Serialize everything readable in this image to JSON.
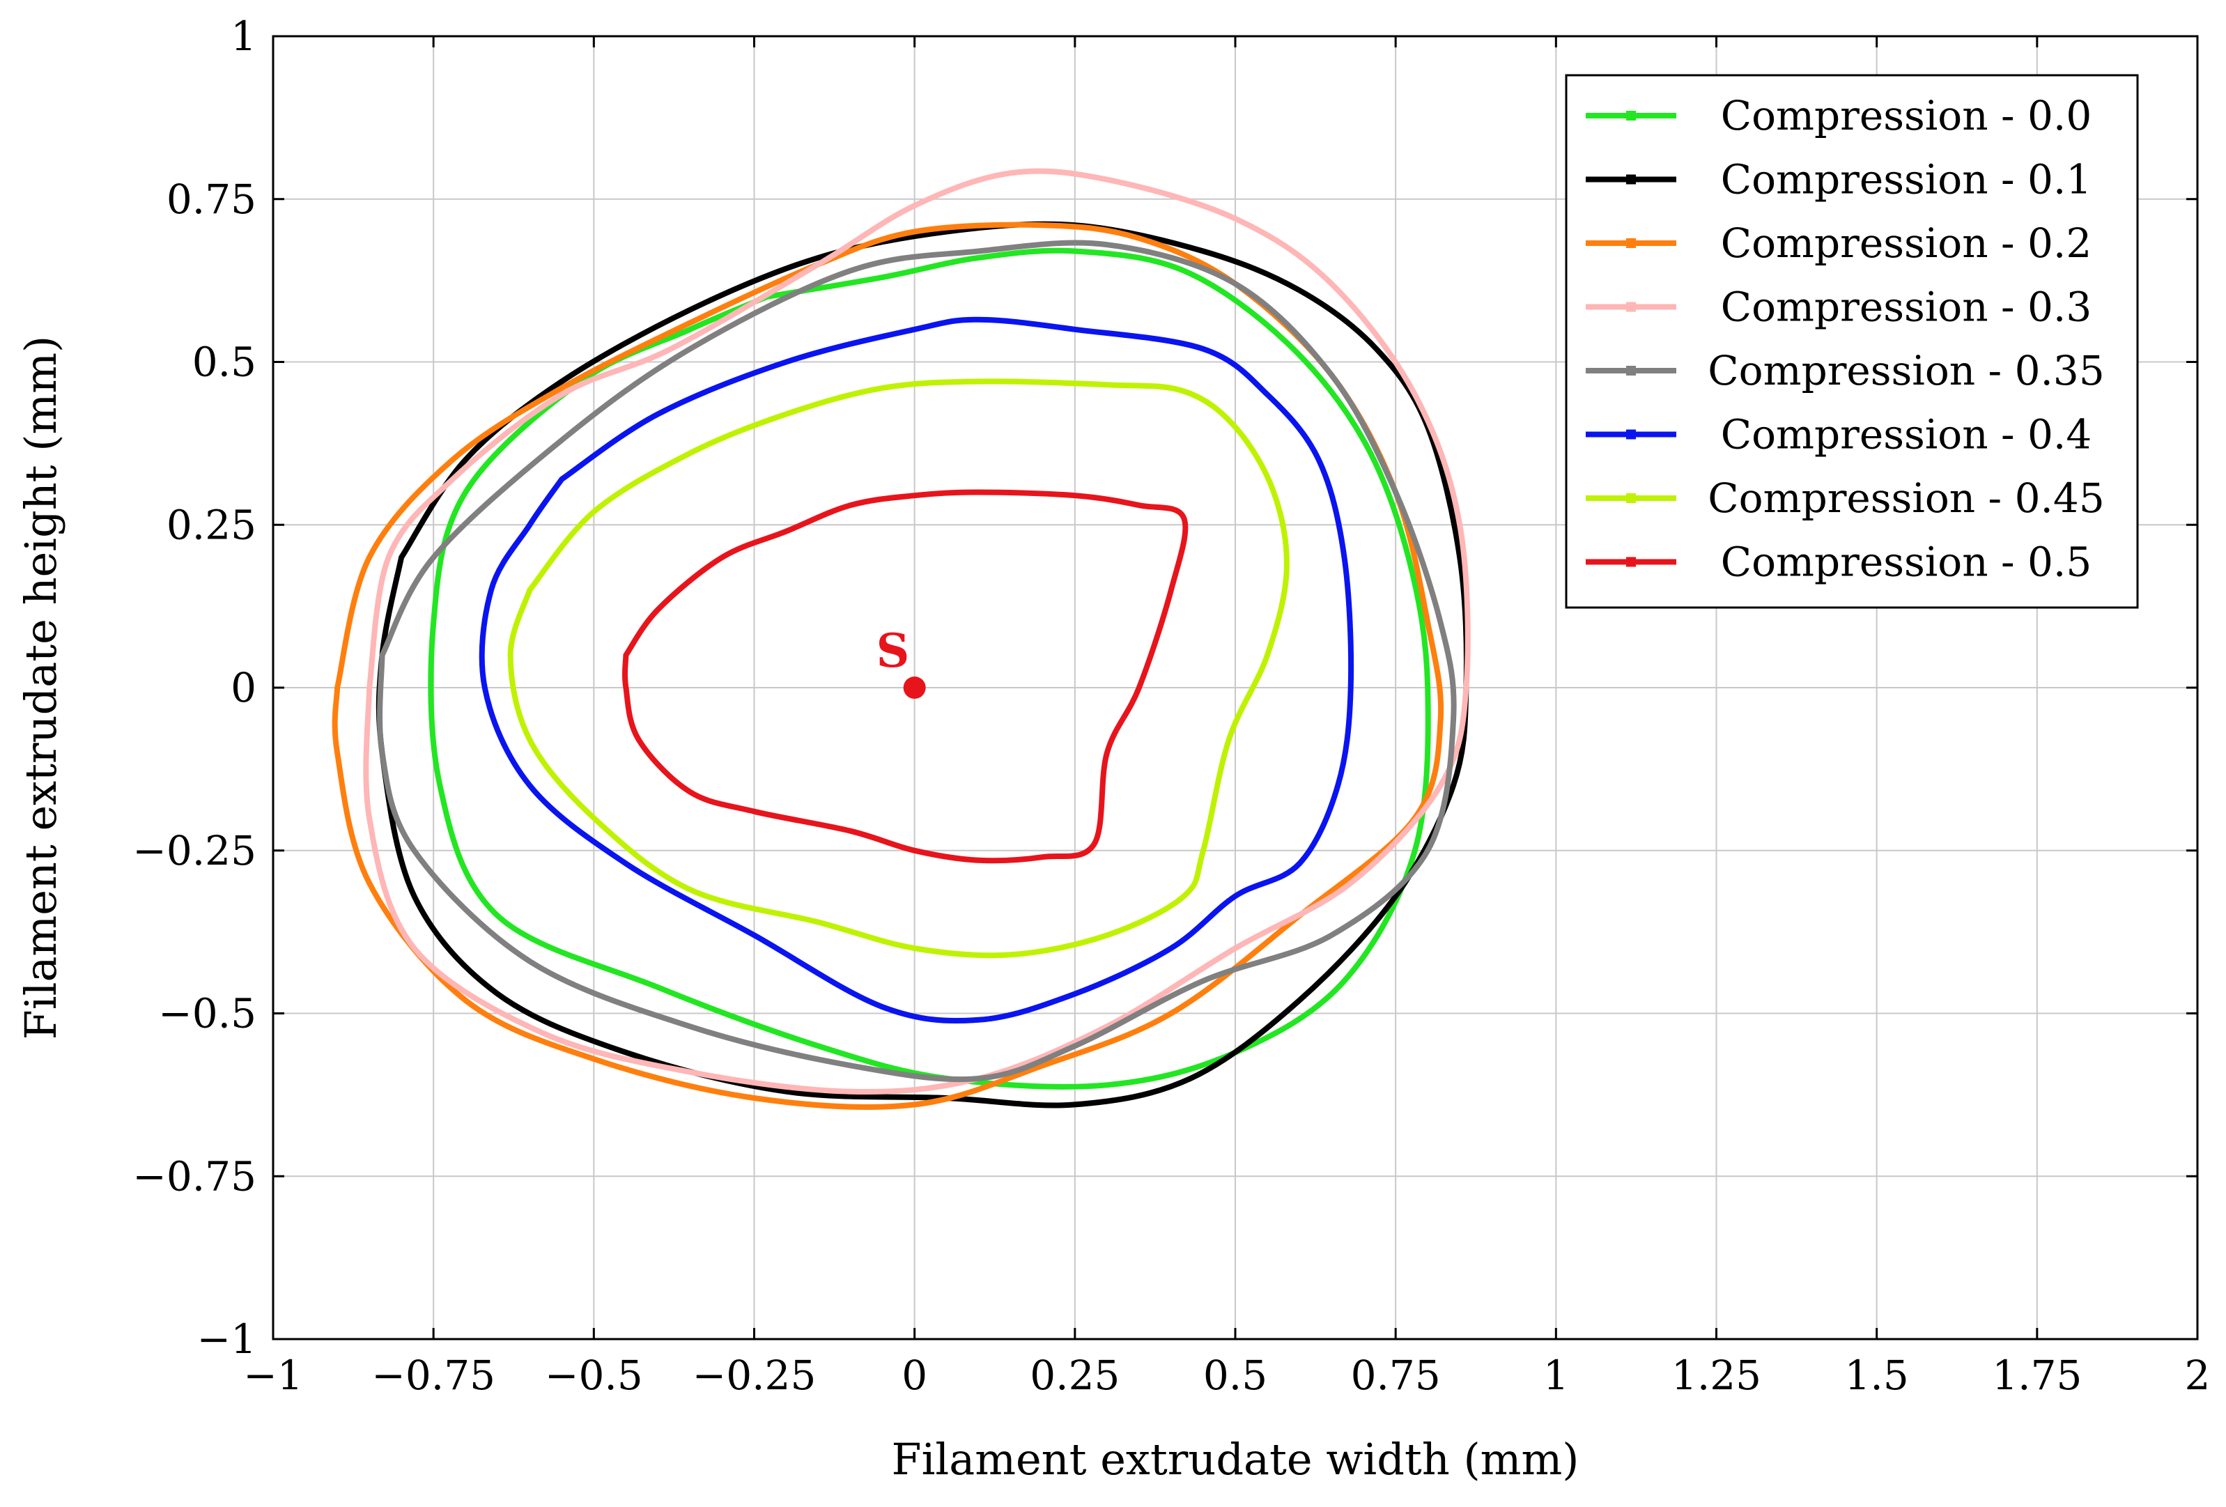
{
  "chart_data": {
    "type": "line",
    "title": "",
    "xlabel": "Filament extrudate width (mm)",
    "ylabel": "Filament extrudate height (mm)",
    "xlim": [
      -1,
      2
    ],
    "ylim": [
      -1,
      1
    ],
    "grid": true,
    "legend_position": "top-right",
    "x_ticks": [
      -1,
      -0.75,
      -0.5,
      -0.25,
      0,
      0.25,
      0.5,
      0.75,
      1,
      1.25,
      1.5,
      1.75,
      2
    ],
    "x_tick_labels": [
      "−1",
      "−0.75",
      "−0.5",
      "−0.25",
      "0",
      "0.25",
      "0.5",
      "0.75",
      "1",
      "1.25",
      "1.5",
      "1.75",
      "2"
    ],
    "y_ticks": [
      -1,
      -0.75,
      -0.5,
      -0.25,
      0,
      0.25,
      0.5,
      0.75,
      1
    ],
    "y_tick_labels": [
      "−1",
      "−0.75",
      "−0.5",
      "−0.25",
      "0",
      "0.25",
      "0.5",
      "0.75",
      "1"
    ],
    "annotations": [
      {
        "text": "S",
        "x": 0,
        "y": 0,
        "color": "#e8141c"
      }
    ],
    "series": [
      {
        "name": "Compression - 0.0",
        "color": "#22e622",
        "points": [
          [
            -0.23,
            0.6
          ],
          [
            -0.05,
            0.63
          ],
          [
            0.1,
            0.66
          ],
          [
            0.25,
            0.67
          ],
          [
            0.42,
            0.64
          ],
          [
            0.58,
            0.53
          ],
          [
            0.7,
            0.38
          ],
          [
            0.77,
            0.2
          ],
          [
            0.8,
            0.0
          ],
          [
            0.78,
            -0.25
          ],
          [
            0.67,
            -0.45
          ],
          [
            0.5,
            -0.56
          ],
          [
            0.3,
            -0.61
          ],
          [
            0.05,
            -0.6
          ],
          [
            -0.15,
            -0.55
          ],
          [
            -0.4,
            -0.46
          ],
          [
            -0.65,
            -0.35
          ],
          [
            -0.74,
            -0.15
          ],
          [
            -0.75,
            0.1
          ],
          [
            -0.7,
            0.3
          ],
          [
            -0.52,
            0.47
          ],
          [
            -0.35,
            0.55
          ],
          [
            -0.23,
            0.6
          ]
        ]
      },
      {
        "name": "Compression - 0.1",
        "color": "#000000",
        "points": [
          [
            -0.8,
            0.2
          ],
          [
            -0.7,
            0.35
          ],
          [
            -0.55,
            0.47
          ],
          [
            -0.35,
            0.58
          ],
          [
            -0.15,
            0.66
          ],
          [
            0.05,
            0.7
          ],
          [
            0.25,
            0.71
          ],
          [
            0.45,
            0.67
          ],
          [
            0.6,
            0.61
          ],
          [
            0.72,
            0.52
          ],
          [
            0.8,
            0.4
          ],
          [
            0.85,
            0.2
          ],
          [
            0.86,
            0.0
          ],
          [
            0.84,
            -0.15
          ],
          [
            0.75,
            -0.32
          ],
          [
            0.6,
            -0.48
          ],
          [
            0.43,
            -0.6
          ],
          [
            0.25,
            -0.64
          ],
          [
            0.05,
            -0.63
          ],
          [
            -0.2,
            -0.62
          ],
          [
            -0.45,
            -0.56
          ],
          [
            -0.65,
            -0.47
          ],
          [
            -0.78,
            -0.32
          ],
          [
            -0.83,
            -0.1
          ],
          [
            -0.83,
            0.05
          ],
          [
            -0.8,
            0.2
          ]
        ]
      },
      {
        "name": "Compression - 0.2",
        "color": "#ff7f0e",
        "points": [
          [
            -0.9,
            0.0
          ],
          [
            -0.85,
            0.2
          ],
          [
            -0.72,
            0.35
          ],
          [
            -0.55,
            0.46
          ],
          [
            -0.35,
            0.56
          ],
          [
            -0.15,
            0.65
          ],
          [
            0.0,
            0.7
          ],
          [
            0.2,
            0.71
          ],
          [
            0.35,
            0.69
          ],
          [
            0.5,
            0.62
          ],
          [
            0.65,
            0.48
          ],
          [
            0.75,
            0.3
          ],
          [
            0.8,
            0.1
          ],
          [
            0.82,
            -0.05
          ],
          [
            0.78,
            -0.2
          ],
          [
            0.6,
            -0.35
          ],
          [
            0.4,
            -0.5
          ],
          [
            0.2,
            -0.58
          ],
          [
            0.0,
            -0.64
          ],
          [
            -0.25,
            -0.63
          ],
          [
            -0.5,
            -0.57
          ],
          [
            -0.7,
            -0.48
          ],
          [
            -0.85,
            -0.3
          ],
          [
            -0.9,
            -0.1
          ],
          [
            -0.9,
            0.0
          ]
        ]
      },
      {
        "name": "Compression - 0.3",
        "color": "#ffb6b6",
        "points": [
          [
            -0.85,
            0.0
          ],
          [
            -0.82,
            0.2
          ],
          [
            -0.72,
            0.32
          ],
          [
            -0.55,
            0.45
          ],
          [
            -0.38,
            0.52
          ],
          [
            -0.15,
            0.65
          ],
          [
            0.0,
            0.74
          ],
          [
            0.15,
            0.79
          ],
          [
            0.3,
            0.78
          ],
          [
            0.5,
            0.72
          ],
          [
            0.65,
            0.62
          ],
          [
            0.78,
            0.45
          ],
          [
            0.85,
            0.25
          ],
          [
            0.86,
            0.0
          ],
          [
            0.82,
            -0.15
          ],
          [
            0.68,
            -0.3
          ],
          [
            0.5,
            -0.4
          ],
          [
            0.3,
            -0.52
          ],
          [
            0.1,
            -0.6
          ],
          [
            -0.1,
            -0.62
          ],
          [
            -0.35,
            -0.59
          ],
          [
            -0.58,
            -0.53
          ],
          [
            -0.78,
            -0.4
          ],
          [
            -0.85,
            -0.2
          ],
          [
            -0.85,
            0.0
          ]
        ]
      },
      {
        "name": "Compression - 0.35",
        "color": "#808080",
        "points": [
          [
            -0.83,
            0.05
          ],
          [
            -0.75,
            0.2
          ],
          [
            -0.55,
            0.38
          ],
          [
            -0.35,
            0.52
          ],
          [
            -0.1,
            0.64
          ],
          [
            0.1,
            0.67
          ],
          [
            0.3,
            0.68
          ],
          [
            0.5,
            0.62
          ],
          [
            0.65,
            0.48
          ],
          [
            0.75,
            0.3
          ],
          [
            0.82,
            0.1
          ],
          [
            0.84,
            -0.05
          ],
          [
            0.8,
            -0.25
          ],
          [
            0.65,
            -0.38
          ],
          [
            0.45,
            -0.45
          ],
          [
            0.25,
            -0.55
          ],
          [
            0.1,
            -0.6
          ],
          [
            -0.1,
            -0.58
          ],
          [
            -0.35,
            -0.52
          ],
          [
            -0.6,
            -0.42
          ],
          [
            -0.78,
            -0.25
          ],
          [
            -0.83,
            -0.1
          ],
          [
            -0.83,
            0.05
          ]
        ]
      },
      {
        "name": "Compression - 0.4",
        "color": "#0a14f0",
        "points": [
          [
            -0.55,
            0.32
          ],
          [
            -0.4,
            0.42
          ],
          [
            -0.2,
            0.5
          ],
          [
            0.0,
            0.55
          ],
          [
            0.1,
            0.565
          ],
          [
            0.25,
            0.55
          ],
          [
            0.45,
            0.52
          ],
          [
            0.55,
            0.45
          ],
          [
            0.63,
            0.35
          ],
          [
            0.67,
            0.2
          ],
          [
            0.68,
            0.0
          ],
          [
            0.66,
            -0.15
          ],
          [
            0.6,
            -0.27
          ],
          [
            0.5,
            -0.32
          ],
          [
            0.4,
            -0.4
          ],
          [
            0.25,
            -0.47
          ],
          [
            0.1,
            -0.51
          ],
          [
            -0.05,
            -0.49
          ],
          [
            -0.25,
            -0.38
          ],
          [
            -0.45,
            -0.27
          ],
          [
            -0.6,
            -0.15
          ],
          [
            -0.67,
            0.0
          ],
          [
            -0.66,
            0.15
          ],
          [
            -0.6,
            0.25
          ],
          [
            -0.55,
            0.32
          ]
        ]
      },
      {
        "name": "Compression - 0.45",
        "color": "#bff200",
        "points": [
          [
            -0.6,
            0.15
          ],
          [
            -0.5,
            0.27
          ],
          [
            -0.35,
            0.36
          ],
          [
            -0.2,
            0.42
          ],
          [
            -0.05,
            0.46
          ],
          [
            0.1,
            0.47
          ],
          [
            0.3,
            0.465
          ],
          [
            0.42,
            0.455
          ],
          [
            0.5,
            0.4
          ],
          [
            0.56,
            0.3
          ],
          [
            0.58,
            0.18
          ],
          [
            0.55,
            0.05
          ],
          [
            0.49,
            -0.08
          ],
          [
            0.45,
            -0.25
          ],
          [
            0.42,
            -0.32
          ],
          [
            0.3,
            -0.38
          ],
          [
            0.15,
            -0.41
          ],
          [
            0.0,
            -0.4
          ],
          [
            -0.15,
            -0.36
          ],
          [
            -0.35,
            -0.31
          ],
          [
            -0.5,
            -0.2
          ],
          [
            -0.6,
            -0.08
          ],
          [
            -0.63,
            0.05
          ],
          [
            -0.6,
            0.15
          ]
        ]
      },
      {
        "name": "Compression - 0.5",
        "color": "#e8141c",
        "points": [
          [
            -0.45,
            0.05
          ],
          [
            -0.4,
            0.12
          ],
          [
            -0.3,
            0.2
          ],
          [
            -0.2,
            0.24
          ],
          [
            -0.1,
            0.28
          ],
          [
            0.0,
            0.295
          ],
          [
            0.1,
            0.3
          ],
          [
            0.25,
            0.295
          ],
          [
            0.35,
            0.28
          ],
          [
            0.42,
            0.26
          ],
          [
            0.4,
            0.15
          ],
          [
            0.35,
            0.0
          ],
          [
            0.3,
            -0.1
          ],
          [
            0.28,
            -0.24
          ],
          [
            0.2,
            -0.26
          ],
          [
            0.1,
            -0.265
          ],
          [
            0.0,
            -0.25
          ],
          [
            -0.1,
            -0.22
          ],
          [
            -0.25,
            -0.19
          ],
          [
            -0.35,
            -0.16
          ],
          [
            -0.43,
            -0.08
          ],
          [
            -0.45,
            0.0
          ],
          [
            -0.45,
            0.05
          ]
        ]
      }
    ]
  }
}
